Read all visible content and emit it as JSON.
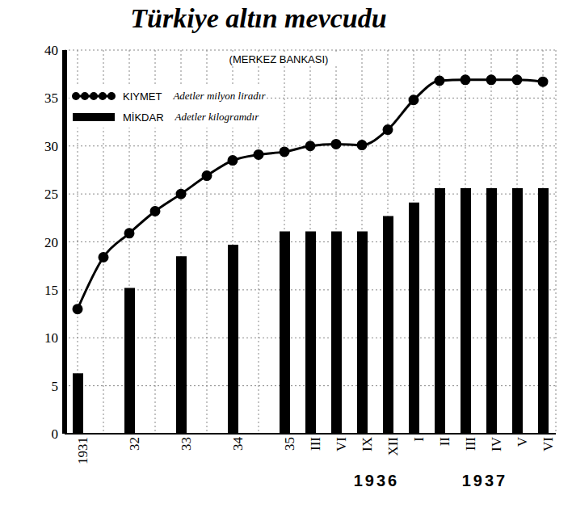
{
  "chart_data": {
    "type": "bar",
    "title": "Türkiye altın mevcudu",
    "subtitle": "(MERKEZ BANKASI)",
    "categories": [
      "1931",
      null,
      "32",
      null,
      "33",
      null,
      "34",
      null,
      "35",
      "III",
      "VI",
      "IX",
      "XII",
      "I",
      "II",
      "III",
      "IV",
      "V",
      "VI"
    ],
    "annotations": [
      "1936",
      "1937"
    ],
    "series": [
      {
        "name": "KIYMET",
        "unit_label": "Adetler milyon liradır",
        "type": "line",
        "marker": "circle",
        "color": "#000000",
        "values": [
          13.0,
          18.4,
          20.9,
          23.2,
          25.0,
          26.9,
          28.5,
          29.1,
          29.4,
          30.0,
          30.2,
          30.1,
          31.7,
          34.8,
          36.8,
          36.9,
          36.9,
          36.9,
          36.7
        ]
      },
      {
        "name": "MİKDAR",
        "unit_label": "Adetler kilogramdır",
        "type": "bar",
        "color": "#000000",
        "values": [
          6.3,
          null,
          15.2,
          null,
          18.5,
          null,
          19.7,
          null,
          21.1,
          21.1,
          21.1,
          21.1,
          22.7,
          24.1,
          25.6,
          25.6,
          25.6,
          25.6,
          25.6
        ]
      }
    ],
    "ylim": [
      0,
      40
    ],
    "yticks": [
      0,
      5,
      10,
      15,
      20,
      25,
      30,
      35,
      40
    ],
    "grid": true
  }
}
